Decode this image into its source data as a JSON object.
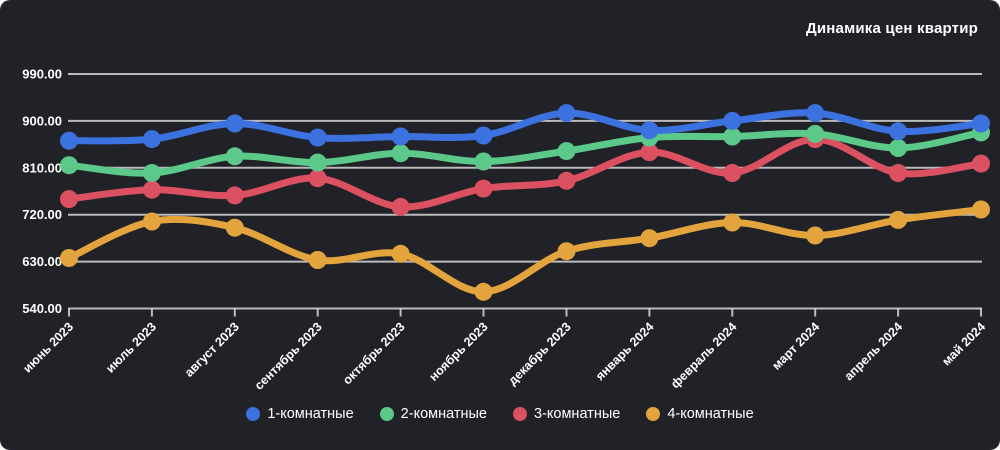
{
  "title": "Динамика цен квартир",
  "colors": {
    "background": "#212227",
    "grid": "#d6d6d6",
    "text": "#ffffff",
    "series_blue": "#3b72e0",
    "series_green": "#5cc98b",
    "series_red": "#dc5161",
    "series_yellow": "#e3a33d"
  },
  "chart_data": {
    "type": "line",
    "title": "Динамика цен квартир",
    "categories": [
      "июнь 2023",
      "июль 2023",
      "август 2023",
      "сентябрь 2023",
      "октябрь 2023",
      "ноябрь 2023",
      "декабрь 2023",
      "январь 2024",
      "февраль 2024",
      "март 2024",
      "апрель 2024",
      "май 2024"
    ],
    "series": [
      {
        "name": "1-комнатные",
        "color": "#3b72e0",
        "values": [
          862,
          865,
          895,
          868,
          870,
          872,
          915,
          882,
          900,
          915,
          880,
          895
        ]
      },
      {
        "name": "2-комнатные",
        "color": "#5cc98b",
        "values": [
          815,
          800,
          832,
          820,
          838,
          822,
          842,
          868,
          870,
          875,
          848,
          878
        ]
      },
      {
        "name": "3-комнатные",
        "color": "#dc5161",
        "values": [
          750,
          768,
          757,
          790,
          735,
          770,
          785,
          840,
          800,
          865,
          800,
          818
        ]
      },
      {
        "name": "4-комнатные",
        "color": "#e3a33d",
        "values": [
          637,
          707,
          695,
          633,
          645,
          572,
          650,
          675,
          705,
          680,
          710,
          730
        ]
      }
    ],
    "y_ticks": [
      540,
      630,
      720,
      810,
      900,
      990
    ],
    "y_tick_labels": [
      "540.00",
      "630.00",
      "720.00",
      "810.00",
      "900.00",
      "990.00"
    ],
    "ylim": [
      540,
      990
    ],
    "xlabel": "",
    "ylabel": "",
    "grid": true,
    "legend_position": "bottom",
    "smooth": true
  }
}
